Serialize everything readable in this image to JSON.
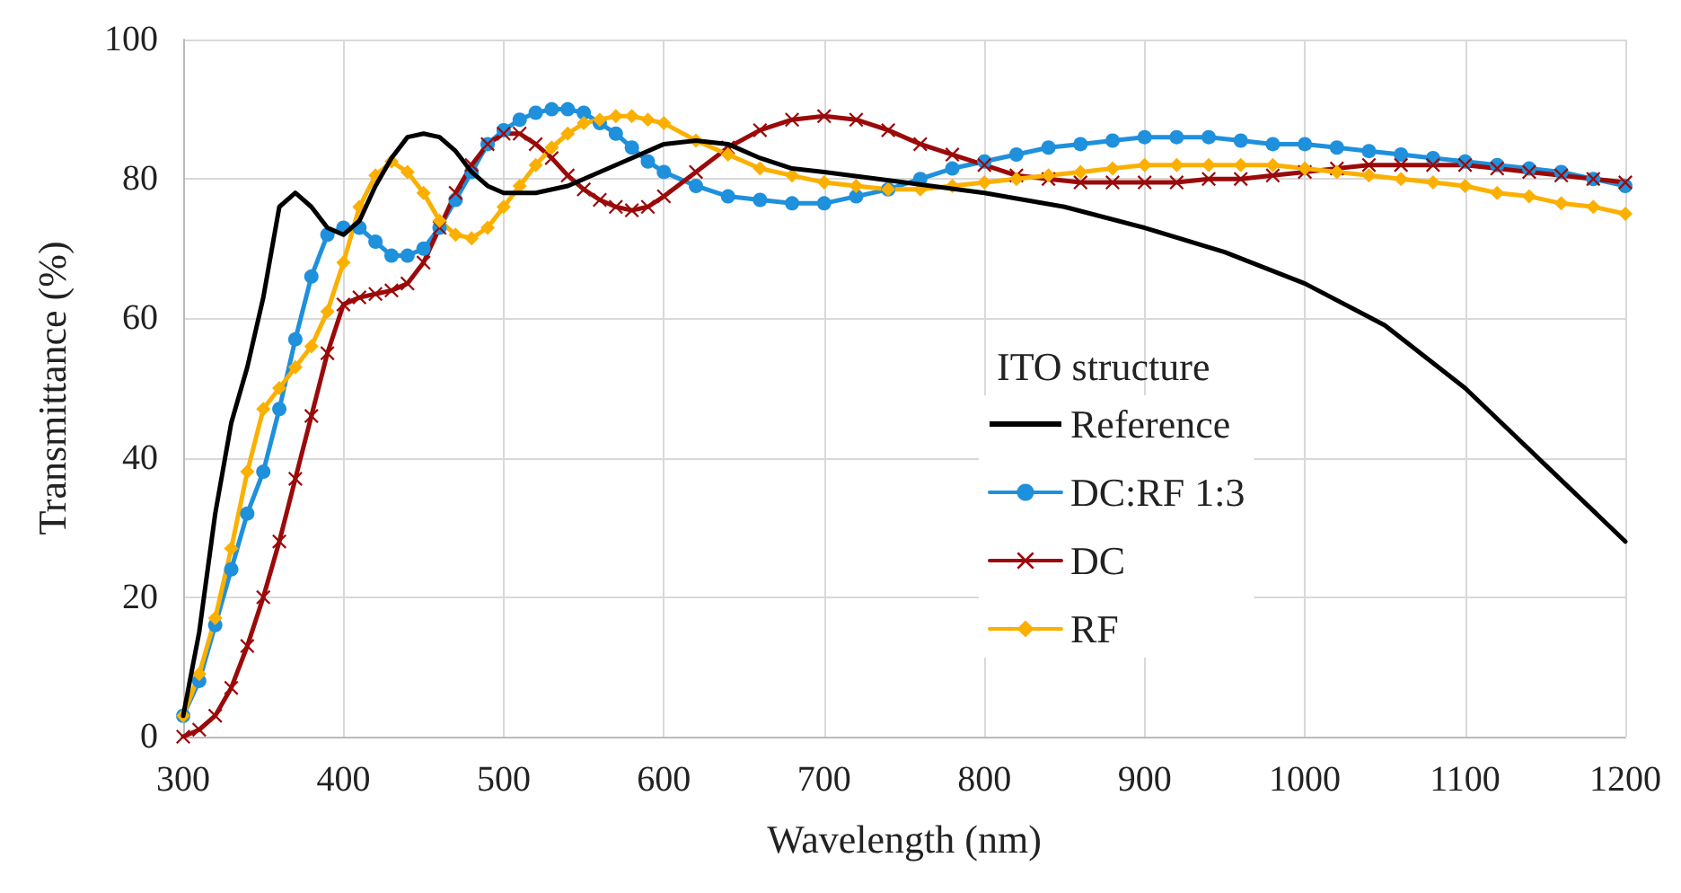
{
  "chart_data": {
    "type": "line",
    "xlabel": "Wavelength (nm)",
    "ylabel": "Transmittance (%)",
    "legend_title": "ITO structure",
    "legend": "right",
    "grid": true,
    "line_style": "solid",
    "xlim": [
      300,
      1200
    ],
    "xticks": [
      300,
      400,
      500,
      600,
      700,
      800,
      900,
      1000,
      1100,
      1200
    ],
    "ylim": [
      0,
      100
    ],
    "yticks": [
      0,
      20,
      40,
      60,
      80,
      100
    ],
    "x": [
      300,
      310,
      320,
      330,
      340,
      350,
      360,
      370,
      380,
      390,
      400,
      410,
      420,
      430,
      440,
      450,
      460,
      470,
      480,
      490,
      500,
      510,
      520,
      530,
      540,
      550,
      560,
      570,
      580,
      590,
      600,
      620,
      640,
      660,
      680,
      700,
      720,
      740,
      760,
      780,
      800,
      820,
      840,
      860,
      880,
      900,
      920,
      940,
      960,
      980,
      1000,
      1020,
      1040,
      1060,
      1080,
      1100,
      1120,
      1140,
      1160,
      1180,
      1200
    ],
    "series": [
      {
        "name": "Reference",
        "color": "#000000",
        "marker": "none",
        "x": [
          300,
          310,
          320,
          330,
          340,
          350,
          360,
          370,
          380,
          390,
          400,
          410,
          420,
          430,
          440,
          450,
          460,
          470,
          480,
          490,
          500,
          520,
          540,
          560,
          580,
          600,
          620,
          640,
          660,
          680,
          700,
          750,
          800,
          850,
          900,
          950,
          1000,
          1050,
          1100,
          1150,
          1200
        ],
        "values": [
          3,
          15,
          32,
          45,
          53,
          63,
          76,
          78,
          76,
          73,
          72,
          74,
          79,
          83,
          86,
          86.5,
          86,
          84,
          81,
          79,
          78,
          78,
          79,
          81,
          83,
          85,
          85.5,
          85,
          83,
          81.5,
          81,
          79.5,
          78,
          76,
          73,
          69.5,
          65,
          59,
          50,
          39,
          28
        ]
      },
      {
        "name": "DC:RF 1:3",
        "color": "#1e90dc",
        "marker": "circle",
        "values": [
          3,
          8,
          16,
          24,
          32,
          38,
          47,
          57,
          66,
          72,
          73,
          73,
          71,
          69,
          69,
          70,
          73,
          77,
          81,
          85,
          87,
          88.5,
          89.5,
          90,
          90,
          89.5,
          88,
          86.5,
          84.5,
          82.5,
          81,
          79,
          77.5,
          77,
          76.5,
          76.5,
          77.5,
          78.5,
          80,
          81.5,
          82.5,
          83.5,
          84.5,
          85,
          85.5,
          86,
          86,
          86,
          85.5,
          85,
          85,
          84.5,
          84,
          83.5,
          83,
          82.5,
          82,
          81.5,
          81,
          80,
          79
        ]
      },
      {
        "name": "DC",
        "color": "#9b0a0a",
        "marker": "cross",
        "values": [
          0,
          1,
          3,
          7,
          13,
          20,
          28,
          37,
          46,
          55,
          62,
          63,
          63.5,
          64,
          65,
          68,
          73,
          78,
          82,
          85,
          86.5,
          86.5,
          85,
          83,
          80.5,
          78.5,
          77,
          76,
          75.5,
          76,
          77.5,
          81,
          84.5,
          87,
          88.5,
          89,
          88.5,
          87,
          85,
          83.5,
          82,
          80.5,
          80,
          79.5,
          79.5,
          79.5,
          79.5,
          80,
          80,
          80.5,
          81,
          81.5,
          82,
          82,
          82,
          82,
          81.5,
          81,
          80.5,
          80,
          79.5
        ]
      },
      {
        "name": "RF",
        "color": "#fbb000",
        "marker": "diamond",
        "values": [
          3,
          9,
          17,
          27,
          38,
          47,
          50,
          53,
          56,
          61,
          68,
          76,
          80.5,
          82.5,
          81,
          78,
          74,
          72,
          71.5,
          73,
          76,
          79,
          82,
          84.5,
          86.5,
          88,
          88.5,
          89,
          89,
          88.5,
          88,
          85.5,
          83.5,
          81.5,
          80.5,
          79.5,
          79,
          78.5,
          78.5,
          79,
          79.5,
          80,
          80.5,
          81,
          81.5,
          82,
          82,
          82,
          82,
          82,
          81.5,
          81,
          80.5,
          80,
          79.5,
          79,
          78,
          77.5,
          76.5,
          76,
          75
        ]
      }
    ]
  }
}
